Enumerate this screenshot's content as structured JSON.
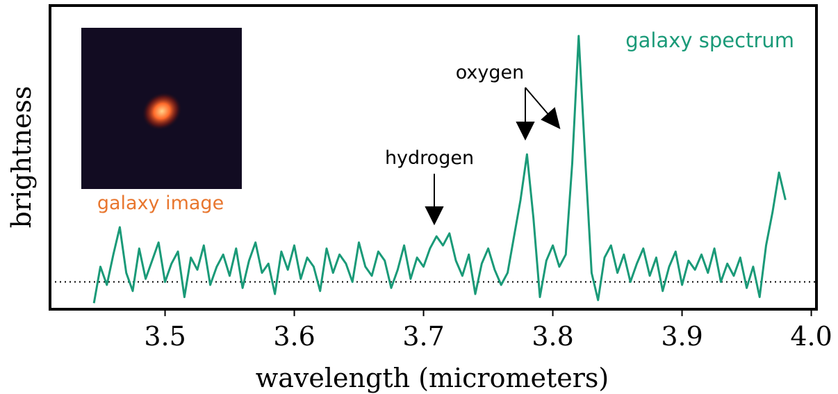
{
  "chart_data": {
    "type": "line",
    "xlabel": "wavelength (micrometers)",
    "ylabel": "brightness",
    "inset_label": "galaxy image",
    "annotations": [
      {
        "text": "hydrogen"
      },
      {
        "text": "oxygen"
      }
    ],
    "xlim": [
      3.411,
      4.004
    ],
    "ylim": [
      0,
      100
    ],
    "xticks": [
      3.5,
      3.6,
      3.7,
      3.8,
      3.9,
      {
        "value": 4,
        "label": "4.0"
      }
    ],
    "hline": 9,
    "x": [
      3.445,
      3.45,
      3.455,
      3.46,
      3.465,
      3.47,
      3.475,
      3.48,
      3.485,
      3.49,
      3.495,
      3.5,
      3.505,
      3.51,
      3.515,
      3.52,
      3.525,
      3.53,
      3.535,
      3.54,
      3.545,
      3.55,
      3.555,
      3.56,
      3.565,
      3.57,
      3.575,
      3.58,
      3.585,
      3.59,
      3.595,
      3.6,
      3.605,
      3.61,
      3.615,
      3.62,
      3.625,
      3.63,
      3.635,
      3.64,
      3.645,
      3.65,
      3.655,
      3.66,
      3.665,
      3.67,
      3.675,
      3.68,
      3.685,
      3.69,
      3.695,
      3.7,
      3.705,
      3.71,
      3.715,
      3.72,
      3.725,
      3.73,
      3.735,
      3.74,
      3.745,
      3.75,
      3.755,
      3.76,
      3.765,
      3.77,
      3.775,
      3.78,
      3.785,
      3.79,
      3.795,
      3.8,
      3.805,
      3.81,
      3.815,
      3.82,
      3.825,
      3.83,
      3.835,
      3.84,
      3.845,
      3.85,
      3.855,
      3.86,
      3.865,
      3.87,
      3.875,
      3.88,
      3.885,
      3.89,
      3.895,
      3.9,
      3.905,
      3.91,
      3.915,
      3.92,
      3.925,
      3.93,
      3.935,
      3.94,
      3.945,
      3.95,
      3.955,
      3.96,
      3.965,
      3.97,
      3.975,
      3.98
    ],
    "series": [
      {
        "name": "galaxy spectrum",
        "color": "#1a9a78",
        "values": [
          2,
          14,
          8,
          18,
          27,
          12,
          6,
          20,
          10,
          16,
          22,
          9,
          15,
          19,
          4,
          17,
          13,
          21,
          8,
          14,
          18,
          11,
          20,
          7,
          16,
          22,
          12,
          15,
          5,
          19,
          13,
          21,
          10,
          17,
          14,
          6,
          20,
          12,
          18,
          15,
          9,
          22,
          14,
          11,
          19,
          16,
          7,
          13,
          21,
          10,
          17,
          14,
          20,
          24,
          21,
          25,
          16,
          11,
          18,
          5,
          15,
          20,
          13,
          8,
          12,
          24,
          36,
          51,
          30,
          4,
          16,
          21,
          14,
          18,
          48,
          90,
          50,
          12,
          3,
          17,
          21,
          12,
          18,
          9,
          15,
          20,
          11,
          17,
          6,
          14,
          19,
          8,
          16,
          13,
          18,
          12,
          20,
          9,
          15,
          11,
          17,
          7,
          14,
          4,
          21,
          32,
          45,
          36
        ]
      }
    ]
  }
}
